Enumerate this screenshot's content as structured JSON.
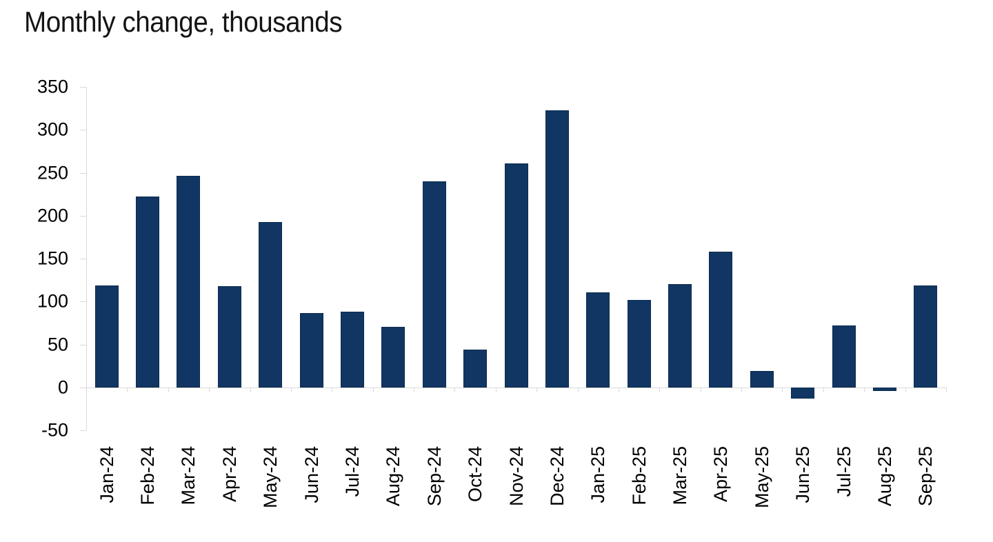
{
  "title": "Monthly change, thousands",
  "chart_data": {
    "type": "bar",
    "title": "Monthly change, thousands",
    "categories": [
      "Jan-24",
      "Feb-24",
      "Mar-24",
      "Apr-24",
      "May-24",
      "Jun-24",
      "Jul-24",
      "Aug-24",
      "Sep-24",
      "Oct-24",
      "Nov-24",
      "Dec-24",
      "Jan-25",
      "Feb-25",
      "Mar-25",
      "Apr-25",
      "May-25",
      "Jun-25",
      "Jul-25",
      "Aug-25",
      "Sep-25"
    ],
    "values": [
      119,
      222,
      246,
      118,
      193,
      87,
      88,
      71,
      240,
      44,
      261,
      323,
      111,
      102,
      120,
      158,
      19,
      -13,
      72,
      -4,
      119
    ],
    "xlabel": "",
    "ylabel": "",
    "ylim": [
      -50,
      350
    ],
    "yticks": [
      350,
      300,
      250,
      200,
      150,
      100,
      50,
      0,
      -50
    ],
    "grid": false,
    "legend": "none",
    "bar_color": "#113663",
    "bar_border_color": "#0B2A4E",
    "axis_color": "#D9D9D9",
    "text_color": "#000000"
  }
}
